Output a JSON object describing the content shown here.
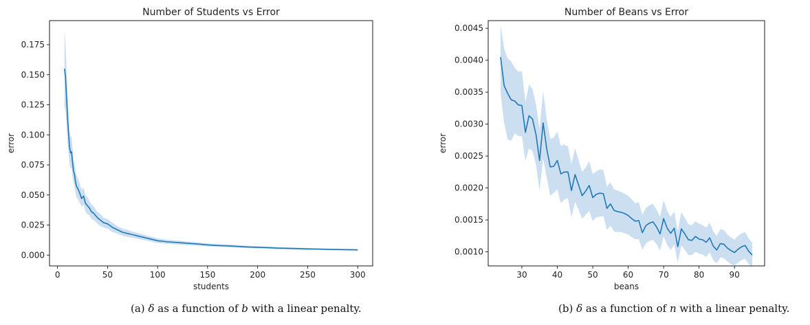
{
  "captions": [
    {
      "label": "(a)",
      "pre": "as a function of",
      "var": "b",
      "post": "with a linear penalty.",
      "delta": "δ"
    },
    {
      "label": "(b)",
      "pre": "as a function of",
      "var": "n",
      "post": "with a linear penalty.",
      "delta": "δ"
    }
  ],
  "chart_data": [
    {
      "type": "line",
      "title": "Number of Students vs Error",
      "xlabel": "students",
      "ylabel": "error",
      "xlim": [
        -8,
        315
      ],
      "ylim": [
        -0.009,
        0.195
      ],
      "xticks": [
        0,
        50,
        100,
        150,
        200,
        250,
        300
      ],
      "xtick_labels": [
        "0",
        "50",
        "100",
        "150",
        "200",
        "250",
        "300"
      ],
      "yticks": [
        0.0,
        0.025,
        0.05,
        0.075,
        0.1,
        0.125,
        0.15,
        0.175
      ],
      "ytick_labels": [
        "0.000",
        "0.025",
        "0.050",
        "0.075",
        "0.100",
        "0.125",
        "0.150",
        "0.175"
      ],
      "grid": false,
      "series": [
        {
          "color": "#1f77b4",
          "band_color": "#c6dcef",
          "x": [
            7,
            8,
            9,
            10,
            11,
            12,
            13,
            14,
            15,
            16,
            17,
            18,
            19,
            20,
            22,
            24,
            26,
            28,
            30,
            32,
            34,
            36,
            38,
            40,
            43,
            46,
            50,
            55,
            60,
            65,
            70,
            75,
            80,
            90,
            100,
            110,
            120,
            130,
            140,
            150,
            160,
            170,
            180,
            190,
            200,
            210,
            220,
            230,
            240,
            250,
            260,
            270,
            280,
            290,
            300
          ],
          "y": [
            0.155,
            0.148,
            0.132,
            0.115,
            0.102,
            0.09,
            0.085,
            0.086,
            0.077,
            0.07,
            0.067,
            0.061,
            0.057,
            0.056,
            0.052,
            0.047,
            0.049,
            0.043,
            0.041,
            0.039,
            0.036,
            0.035,
            0.033,
            0.031,
            0.029,
            0.027,
            0.026,
            0.023,
            0.021,
            0.019,
            0.018,
            0.017,
            0.016,
            0.014,
            0.012,
            0.011,
            0.0105,
            0.0098,
            0.0092,
            0.0085,
            0.008,
            0.0077,
            0.0072,
            0.0068,
            0.0065,
            0.0062,
            0.0058,
            0.0056,
            0.0054,
            0.0051,
            0.005,
            0.0048,
            0.0046,
            0.0045,
            0.0043
          ],
          "lower": [
            0.123,
            0.12,
            0.108,
            0.095,
            0.085,
            0.076,
            0.072,
            0.073,
            0.065,
            0.06,
            0.057,
            0.052,
            0.048,
            0.047,
            0.044,
            0.04,
            0.042,
            0.036,
            0.034,
            0.033,
            0.03,
            0.029,
            0.028,
            0.026,
            0.024,
            0.023,
            0.022,
            0.019,
            0.018,
            0.016,
            0.015,
            0.0145,
            0.0135,
            0.0118,
            0.0101,
            0.0093,
            0.0089,
            0.0083,
            0.0078,
            0.0072,
            0.0068,
            0.0065,
            0.0061,
            0.0058,
            0.0055,
            0.0053,
            0.0049,
            0.0047,
            0.0046,
            0.0043,
            0.0042,
            0.0041,
            0.0039,
            0.0038,
            0.0036
          ],
          "upper": [
            0.187,
            0.176,
            0.156,
            0.135,
            0.119,
            0.104,
            0.098,
            0.099,
            0.089,
            0.08,
            0.077,
            0.07,
            0.066,
            0.065,
            0.06,
            0.054,
            0.056,
            0.05,
            0.048,
            0.045,
            0.042,
            0.041,
            0.038,
            0.036,
            0.034,
            0.031,
            0.03,
            0.027,
            0.024,
            0.022,
            0.021,
            0.0195,
            0.0185,
            0.0162,
            0.0139,
            0.0127,
            0.0121,
            0.0113,
            0.0106,
            0.0098,
            0.0092,
            0.0089,
            0.0083,
            0.0078,
            0.0075,
            0.0071,
            0.0067,
            0.0065,
            0.0062,
            0.0059,
            0.0058,
            0.0055,
            0.0053,
            0.0052,
            0.005
          ]
        }
      ]
    },
    {
      "type": "line",
      "title": "Number of Beans vs Error",
      "xlabel": "beans",
      "ylabel": "error",
      "xlim": [
        20.5,
        98.5
      ],
      "ylim": [
        0.00078,
        0.00462
      ],
      "xticks": [
        30,
        40,
        50,
        60,
        70,
        80,
        90
      ],
      "xtick_labels": [
        "30",
        "40",
        "50",
        "60",
        "70",
        "80",
        "90"
      ],
      "yticks": [
        0.001,
        0.0015,
        0.002,
        0.0025,
        0.003,
        0.0035,
        0.004,
        0.0045
      ],
      "ytick_labels": [
        "0.0010",
        "0.0015",
        "0.0020",
        "0.0025",
        "0.0030",
        "0.0035",
        "0.0040",
        "0.0045"
      ],
      "grid": false,
      "series": [
        {
          "color": "#1f77b4",
          "band_color": "#c6dcef",
          "x": [
            24,
            25,
            26,
            27,
            28,
            29,
            30,
            31,
            32,
            33,
            34,
            35,
            36,
            37,
            38,
            39,
            40,
            41,
            42,
            43,
            44,
            45,
            46,
            47,
            48,
            49,
            50,
            51,
            52,
            53,
            54,
            55,
            56,
            57,
            58,
            59,
            60,
            61,
            62,
            63,
            64,
            65,
            66,
            67,
            68,
            69,
            70,
            71,
            72,
            73,
            74,
            75,
            76,
            77,
            78,
            79,
            80,
            81,
            82,
            83,
            84,
            85,
            86,
            87,
            88,
            89,
            90,
            91,
            92,
            93,
            94,
            95
          ],
          "y": [
            0.00405,
            0.0036,
            0.00348,
            0.00338,
            0.00336,
            0.0033,
            0.00329,
            0.00287,
            0.00313,
            0.00308,
            0.00283,
            0.00243,
            0.00302,
            0.00262,
            0.00233,
            0.00234,
            0.00243,
            0.00222,
            0.00225,
            0.00225,
            0.00196,
            0.00221,
            0.00205,
            0.00188,
            0.00195,
            0.00204,
            0.00185,
            0.0019,
            0.00192,
            0.00191,
            0.00168,
            0.00175,
            0.00165,
            0.00163,
            0.00162,
            0.0016,
            0.00157,
            0.00152,
            0.00148,
            0.00149,
            0.0013,
            0.00141,
            0.00145,
            0.00147,
            0.00139,
            0.00128,
            0.00152,
            0.00137,
            0.00129,
            0.00137,
            0.00108,
            0.00136,
            0.00128,
            0.00119,
            0.00118,
            0.00124,
            0.0012,
            0.00119,
            0.00115,
            0.00122,
            0.00109,
            0.00103,
            0.00113,
            0.00112,
            0.00106,
            0.00102,
            0.00099,
            0.00104,
            0.00108,
            0.0011,
            0.00101,
            0.00095
          ],
          "lower": [
            0.00348,
            0.00302,
            0.00276,
            0.00274,
            0.00286,
            0.00281,
            0.00281,
            0.00242,
            0.00262,
            0.00258,
            0.00236,
            0.00196,
            0.00246,
            0.00217,
            0.00188,
            0.00192,
            0.00198,
            0.00176,
            0.00182,
            0.00184,
            0.00154,
            0.00178,
            0.00166,
            0.00152,
            0.00158,
            0.00164,
            0.00148,
            0.00154,
            0.00155,
            0.00156,
            0.00134,
            0.00141,
            0.00132,
            0.00131,
            0.00131,
            0.00129,
            0.00127,
            0.00123,
            0.0012,
            0.0012,
            0.00103,
            0.00113,
            0.00117,
            0.00119,
            0.00112,
            0.00102,
            0.00124,
            0.00111,
            0.00103,
            0.00111,
            0.00083,
            0.0011,
            0.00103,
            0.00095,
            0.00095,
            0.001,
            0.00097,
            0.00096,
            0.00092,
            0.00099,
            0.00087,
            0.00082,
            0.00091,
            0.0009,
            0.00085,
            0.00081,
            0.00079,
            0.00083,
            0.00087,
            0.00089,
            0.00081,
            0.00076
          ],
          "upper": [
            0.00455,
            0.00418,
            0.00403,
            0.00398,
            0.00388,
            0.00382,
            0.00383,
            0.00334,
            0.00362,
            0.00355,
            0.0033,
            0.00292,
            0.00352,
            0.00309,
            0.00277,
            0.00279,
            0.00288,
            0.00266,
            0.00268,
            0.00265,
            0.00238,
            0.00262,
            0.00244,
            0.00225,
            0.00232,
            0.00242,
            0.00222,
            0.00226,
            0.00229,
            0.00228,
            0.00202,
            0.00209,
            0.00198,
            0.00196,
            0.00194,
            0.00191,
            0.00188,
            0.00182,
            0.00176,
            0.00178,
            0.00158,
            0.00169,
            0.00173,
            0.00175,
            0.00166,
            0.00155,
            0.00181,
            0.00164,
            0.00155,
            0.00163,
            0.00133,
            0.00162,
            0.00153,
            0.00143,
            0.00142,
            0.00148,
            0.00144,
            0.00142,
            0.00138,
            0.00146,
            0.00132,
            0.00125,
            0.00136,
            0.00134,
            0.00127,
            0.00123,
            0.00119,
            0.00125,
            0.00129,
            0.00131,
            0.00121,
            0.00114
          ]
        }
      ]
    }
  ]
}
